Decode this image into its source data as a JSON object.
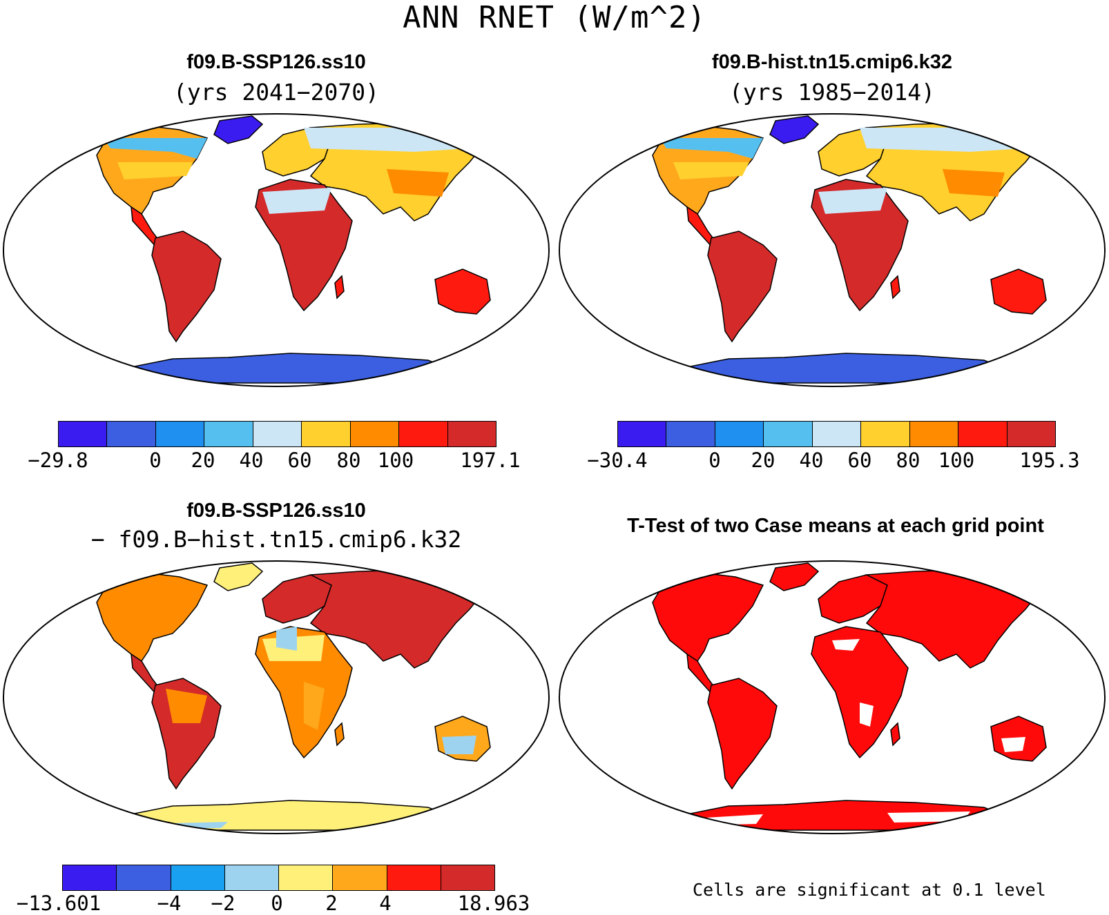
{
  "figure": {
    "title": "ANN RNET (W/m^2)"
  },
  "panels": [
    {
      "id": "case1",
      "title": "f09.B-SSP126.ss10",
      "subtitle": "(yrs 2041−2070)",
      "colorbar": {
        "colors": [
          "#3a1cf0",
          "#3b5fe0",
          "#1f8ff0",
          "#55bff0",
          "#cce6f6",
          "#ffd02e",
          "#ff8c00",
          "#ff1a10",
          "#d42a2a"
        ],
        "tick_labels": [
          "−29.8",
          "0",
          "20",
          "40",
          "60",
          "80",
          "100",
          "197.1"
        ]
      }
    },
    {
      "id": "case2",
      "title": "f09.B-hist.tn15.cmip6.k32",
      "subtitle": "(yrs 1985−2014)",
      "colorbar": {
        "colors": [
          "#3a1cf0",
          "#3b5fe0",
          "#1f8ff0",
          "#55bff0",
          "#cce6f6",
          "#ffd02e",
          "#ff8c00",
          "#ff1a10",
          "#d42a2a"
        ],
        "tick_labels": [
          "−30.4",
          "0",
          "20",
          "40",
          "60",
          "80",
          "100",
          "195.3"
        ]
      }
    },
    {
      "id": "difference",
      "title": "f09.B-SSP126.ss10",
      "subtitle": "− f09.B−hist.tn15.cmip6.k32",
      "colorbar": {
        "colors": [
          "#3a1cf0",
          "#3b5fe0",
          "#1aa0f0",
          "#9ed3ef",
          "#fff07a",
          "#ffa81c",
          "#ff1a10",
          "#d42a2a"
        ],
        "tick_labels": [
          "−13.601",
          "−4",
          "−2",
          "0",
          "2",
          "4",
          "18.963"
        ]
      }
    },
    {
      "id": "ttest",
      "title": "T-Test of two Case means at each grid point",
      "note": "Cells are significant at 0.1 level"
    }
  ],
  "map_colors": {
    "ocean": "#ffffff",
    "coast": "#000000",
    "significant": "#ff0a0a"
  }
}
